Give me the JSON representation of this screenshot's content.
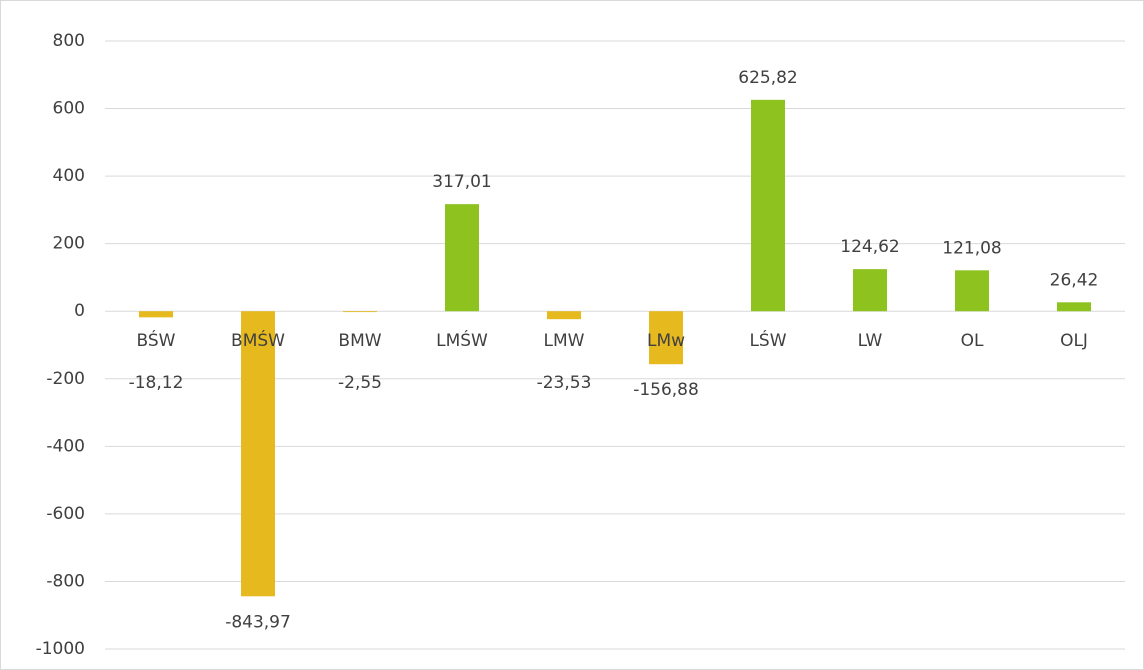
{
  "chart_data": {
    "type": "bar",
    "categories": [
      "BŚW",
      "BMŚW",
      "BMW",
      "LMŚW",
      "LMW",
      "LMw",
      "LŚW",
      "LW",
      "OL",
      "OLJ"
    ],
    "values": [
      -18.12,
      -843.97,
      -2.55,
      317.01,
      -23.53,
      -156.88,
      625.82,
      124.62,
      121.08,
      26.42
    ],
    "value_labels": [
      "-18,12",
      "-843,97",
      "-2,55",
      "317,01",
      "-23,53",
      "-156,88",
      "625,82",
      "124,62",
      "121,08",
      "26,42"
    ],
    "colors": [
      "#e6b91e",
      "#e6b91e",
      "#e6b91e",
      "#8dc21f",
      "#e6b91e",
      "#e6b91e",
      "#8dc21f",
      "#8dc21f",
      "#8dc21f",
      "#8dc21f"
    ],
    "ylim": [
      -1000,
      800
    ],
    "yticks": [
      -1000,
      -800,
      -600,
      -400,
      -200,
      0,
      200,
      400,
      600,
      800
    ],
    "grid": true
  }
}
